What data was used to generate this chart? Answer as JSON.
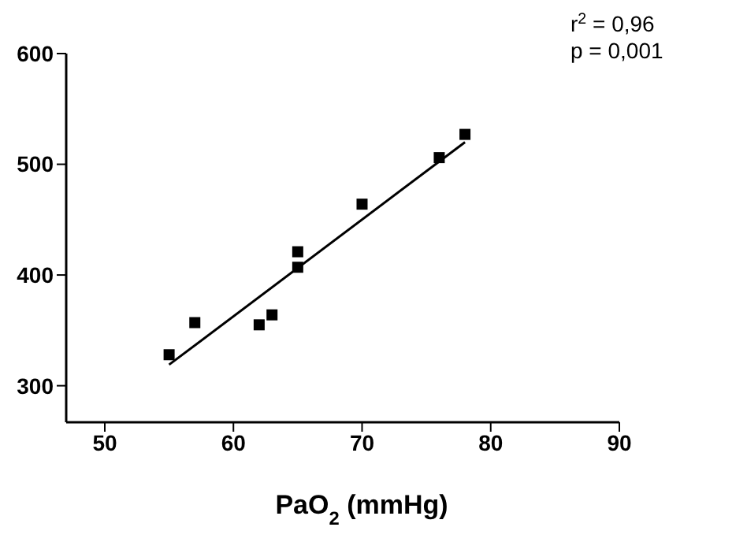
{
  "chart_data": {
    "type": "scatter",
    "xlabel": "PaO$_{2}$ (mmHg)",
    "marker": "square",
    "xlim": [
      47,
      90
    ],
    "xticks": [
      50,
      60,
      70,
      80,
      90
    ],
    "ylim": [
      267,
      600
    ],
    "yticks": [
      300,
      400,
      500,
      600
    ],
    "grid": false,
    "annotations": [
      "r$^{2}$ = 0,96",
      "p = 0,001"
    ],
    "series": [
      {
        "color": "#000000",
        "x": [
          55,
          57,
          62,
          63,
          65,
          65,
          70,
          76,
          78
        ],
        "values": [
          328,
          357,
          355,
          364,
          407,
          421,
          464,
          506,
          527
        ]
      },
      {
        "type": "line",
        "marker": "none",
        "color": "#000000",
        "x": [
          55,
          78
        ],
        "values": [
          319,
          520
        ]
      }
    ]
  }
}
